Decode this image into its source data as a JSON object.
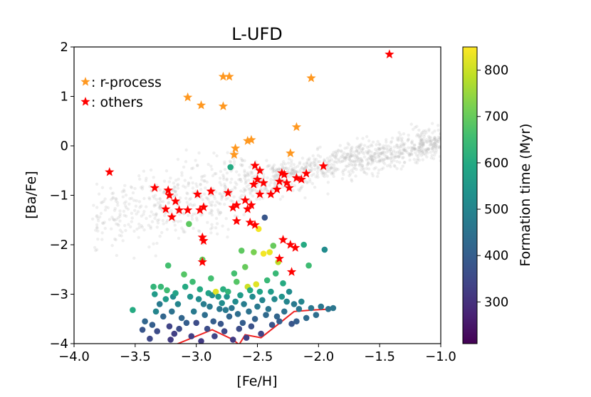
{
  "chart_data": {
    "type": "scatter",
    "title": "L-UFD",
    "xlabel": "[Fe/H]",
    "ylabel": "[Ba/Fe]",
    "xlim": [
      -4.0,
      -1.0
    ],
    "ylim": [
      -4,
      2
    ],
    "xticks": [
      -4.0,
      -3.5,
      -3.0,
      -2.5,
      -2.0,
      -1.5,
      -1.0
    ],
    "xtick_labels": [
      "−4.0",
      "−3.5",
      "−3.0",
      "−2.5",
      "−2.0",
      "−1.5",
      "−1.0"
    ],
    "yticks": [
      -4,
      -3,
      -2,
      -1,
      0,
      1,
      2
    ],
    "ytick_labels": [
      "−4",
      "−3",
      "−2",
      "−1",
      "0",
      "1",
      "2"
    ],
    "legend": {
      "placement": "top-left",
      "entries": [
        {
          "label": ": r-process",
          "marker": "star",
          "color": "#ff9820"
        },
        {
          "label": ": others",
          "marker": "star",
          "color": "#ff0000"
        }
      ]
    },
    "colorbar": {
      "label": "Formation time (Myr)",
      "range": [
        210,
        850
      ],
      "ticks": [
        300,
        400,
        500,
        600,
        700,
        800
      ],
      "tick_labels": [
        "300",
        "400",
        "500",
        "600",
        "700",
        "800"
      ],
      "colormap": "viridis"
    },
    "series": [
      {
        "name": "r-process",
        "marker": "star",
        "color": "#ff9820",
        "points": [
          [
            -2.78,
            1.4
          ],
          [
            -2.73,
            1.4
          ],
          [
            -2.06,
            1.37
          ],
          [
            -3.07,
            0.98
          ],
          [
            -2.96,
            0.82
          ],
          [
            -2.78,
            0.8
          ],
          [
            -2.18,
            0.38
          ],
          [
            -2.55,
            0.12
          ],
          [
            -2.58,
            0.1
          ],
          [
            -2.23,
            -0.15
          ],
          [
            -2.68,
            -0.05
          ],
          [
            -2.69,
            -0.18
          ]
        ]
      },
      {
        "name": "others",
        "marker": "star",
        "color": "#ff0000",
        "points": [
          [
            -1.42,
            1.85
          ],
          [
            -3.71,
            -0.53
          ],
          [
            -3.34,
            -0.85
          ],
          [
            -3.23,
            -0.9
          ],
          [
            -3.22,
            -1.0
          ],
          [
            -3.17,
            -1.12
          ],
          [
            -3.25,
            -1.28
          ],
          [
            -3.14,
            -1.3
          ],
          [
            -3.2,
            -1.44
          ],
          [
            -3.07,
            -1.3
          ],
          [
            -2.99,
            -0.98
          ],
          [
            -2.94,
            -1.24
          ],
          [
            -2.97,
            -1.3
          ],
          [
            -2.88,
            -0.92
          ],
          [
            -2.74,
            -0.95
          ],
          [
            -2.7,
            -1.25
          ],
          [
            -2.67,
            -1.2
          ],
          [
            -2.6,
            -1.1
          ],
          [
            -2.58,
            -1.28
          ],
          [
            -2.55,
            -1.2
          ],
          [
            -2.53,
            -0.78
          ],
          [
            -2.5,
            -0.68
          ],
          [
            -2.52,
            -0.4
          ],
          [
            -2.48,
            -0.5
          ],
          [
            -2.48,
            -0.98
          ],
          [
            -2.45,
            -0.75
          ],
          [
            -2.39,
            -0.98
          ],
          [
            -2.34,
            -0.88
          ],
          [
            -2.32,
            -0.72
          ],
          [
            -2.3,
            -0.55
          ],
          [
            -2.28,
            -0.58
          ],
          [
            -2.26,
            -0.75
          ],
          [
            -2.24,
            -0.85
          ],
          [
            -2.18,
            -0.65
          ],
          [
            -2.1,
            -0.56
          ],
          [
            -2.14,
            -0.68
          ],
          [
            -1.96,
            -0.41
          ],
          [
            -2.52,
            -1.6
          ],
          [
            -2.67,
            -1.52
          ],
          [
            -2.56,
            -1.55
          ],
          [
            -2.29,
            -1.9
          ],
          [
            -2.23,
            -2.0
          ],
          [
            -2.19,
            -2.06
          ],
          [
            -2.32,
            -2.28
          ],
          [
            -2.94,
            -1.92
          ],
          [
            -2.95,
            -2.35
          ],
          [
            -2.22,
            -2.55
          ],
          [
            -2.95,
            -1.85
          ]
        ]
      },
      {
        "name": "simulation",
        "marker": "dot",
        "color": "#b8b8b8",
        "note": "faint grey background cloud of simulated stars following a rising [Ba/Fe] trend"
      },
      {
        "name": "L-UFD stars",
        "marker": "circle",
        "colored_by": "Formation time (Myr)",
        "points": [
          [
            -3.52,
            -3.32,
            600
          ],
          [
            -3.44,
            -3.72,
            380
          ],
          [
            -3.42,
            -3.55,
            420
          ],
          [
            -3.38,
            -3.9,
            350
          ],
          [
            -3.36,
            -3.62,
            400
          ],
          [
            -3.35,
            -2.85,
            630
          ],
          [
            -3.34,
            -3.0,
            560
          ],
          [
            -3.33,
            -3.35,
            500
          ],
          [
            -3.32,
            -3.75,
            360
          ],
          [
            -3.3,
            -3.2,
            470
          ],
          [
            -3.29,
            -2.85,
            640
          ],
          [
            -3.27,
            -3.45,
            420
          ],
          [
            -3.25,
            -3.1,
            560
          ],
          [
            -3.24,
            -2.92,
            650
          ],
          [
            -3.23,
            -2.42,
            660
          ],
          [
            -3.22,
            -3.65,
            340
          ],
          [
            -3.21,
            -3.92,
            320
          ],
          [
            -3.2,
            -3.35,
            450
          ],
          [
            -3.19,
            -3.05,
            520
          ],
          [
            -3.18,
            -3.8,
            330
          ],
          [
            -3.17,
            -2.98,
            580
          ],
          [
            -3.15,
            -3.2,
            500
          ],
          [
            -3.14,
            -3.7,
            360
          ],
          [
            -3.12,
            -3.48,
            420
          ],
          [
            -3.1,
            -2.6,
            680
          ],
          [
            -3.09,
            -2.85,
            600
          ],
          [
            -3.08,
            -3.58,
            400
          ],
          [
            -3.06,
            -1.58,
            690
          ],
          [
            -3.05,
            -3.05,
            540
          ],
          [
            -3.04,
            -3.85,
            330
          ],
          [
            -3.03,
            -2.75,
            650
          ],
          [
            -3.02,
            -3.35,
            470
          ],
          [
            -3.0,
            -3.58,
            360
          ],
          [
            -2.98,
            -3.1,
            520
          ],
          [
            -2.97,
            -2.9,
            600
          ],
          [
            -2.96,
            -3.95,
            320
          ],
          [
            -2.95,
            -2.3,
            700
          ],
          [
            -2.94,
            -3.2,
            480
          ],
          [
            -2.93,
            -3.42,
            440
          ],
          [
            -2.91,
            -3.7,
            360
          ],
          [
            -2.9,
            -2.98,
            580
          ],
          [
            -2.89,
            -3.25,
            470
          ],
          [
            -2.88,
            -2.68,
            660
          ],
          [
            -2.87,
            -3.02,
            520
          ],
          [
            -2.86,
            -3.55,
            400
          ],
          [
            -2.85,
            -3.85,
            340
          ],
          [
            -2.84,
            -2.95,
            820
          ],
          [
            -2.82,
            -3.05,
            560
          ],
          [
            -2.81,
            -3.3,
            460
          ],
          [
            -2.8,
            -3.6,
            380
          ],
          [
            -2.79,
            -3.18,
            520
          ],
          [
            -2.78,
            -2.9,
            610
          ],
          [
            -2.77,
            -3.75,
            350
          ],
          [
            -2.76,
            -3.32,
            470
          ],
          [
            -2.75,
            -3.05,
            540
          ],
          [
            -2.74,
            -2.95,
            630
          ],
          [
            -2.73,
            -3.45,
            420
          ],
          [
            -2.72,
            -0.43,
            600
          ],
          [
            -2.71,
            -3.28,
            460
          ],
          [
            -2.7,
            -3.92,
            320
          ],
          [
            -2.69,
            -2.58,
            660
          ],
          [
            -2.68,
            -3.15,
            520
          ],
          [
            -2.67,
            -2.75,
            680
          ],
          [
            -2.66,
            -3.4,
            440
          ],
          [
            -2.65,
            -3.7,
            360
          ],
          [
            -2.64,
            -3.02,
            560
          ],
          [
            -2.63,
            -2.12,
            690
          ],
          [
            -2.62,
            -3.58,
            400
          ],
          [
            -2.61,
            -3.2,
            480
          ],
          [
            -2.6,
            -2.45,
            700
          ],
          [
            -2.59,
            -3.88,
            330
          ],
          [
            -2.58,
            -2.85,
            800
          ],
          [
            -2.57,
            -3.35,
            450
          ],
          [
            -2.56,
            -2.92,
            600
          ],
          [
            -2.55,
            -3.65,
            370
          ],
          [
            -2.54,
            -3.05,
            520
          ],
          [
            -2.53,
            -2.15,
            720
          ],
          [
            -2.52,
            -3.5,
            410
          ],
          [
            -2.51,
            -2.8,
            820
          ],
          [
            -2.5,
            -3.25,
            470
          ],
          [
            -2.49,
            -1.68,
            840
          ],
          [
            -2.48,
            -2.95,
            580
          ],
          [
            -2.47,
            -3.8,
            340
          ],
          [
            -2.46,
            -3.12,
            500
          ],
          [
            -2.45,
            -2.18,
            840
          ],
          [
            -2.44,
            -1.45,
            380
          ],
          [
            -2.43,
            -3.42,
            430
          ],
          [
            -2.42,
            -2.72,
            640
          ],
          [
            -2.41,
            -3.3,
            460
          ],
          [
            -2.4,
            -2.15,
            830
          ],
          [
            -2.39,
            -2.95,
            560
          ],
          [
            -2.38,
            -3.62,
            380
          ],
          [
            -2.37,
            -2.02,
            700
          ],
          [
            -2.36,
            -3.1,
            510
          ],
          [
            -2.35,
            -2.58,
            640
          ],
          [
            -2.34,
            -3.45,
            420
          ],
          [
            -2.33,
            -2.35,
            780
          ],
          [
            -2.32,
            -3.55,
            400
          ],
          [
            -2.3,
            -3.05,
            540
          ],
          [
            -2.29,
            -2.78,
            600
          ],
          [
            -2.28,
            -3.35,
            450
          ],
          [
            -2.26,
            -3.15,
            500
          ],
          [
            -2.24,
            -2.95,
            520
          ],
          [
            -2.22,
            -3.6,
            380
          ],
          [
            -2.2,
            -3.2,
            470
          ],
          [
            -2.18,
            -3.55,
            400
          ],
          [
            -2.16,
            -3.3,
            460
          ],
          [
            -2.14,
            -3.15,
            500
          ],
          [
            -2.12,
            -2.0,
            600
          ],
          [
            -2.1,
            -3.48,
            430
          ],
          [
            -2.08,
            -2.42,
            650
          ],
          [
            -2.06,
            -3.28,
            460
          ],
          [
            -2.02,
            -3.42,
            440
          ],
          [
            -1.98,
            -3.25,
            460
          ],
          [
            -1.95,
            -2.1,
            520
          ],
          [
            -1.92,
            -3.3,
            450
          ],
          [
            -1.88,
            -3.28,
            460
          ]
        ]
      },
      {
        "name": "lower-limit line",
        "marker": "line",
        "color": "#ee2222",
        "points": [
          [
            -3.2,
            -4.05
          ],
          [
            -2.87,
            -3.72
          ],
          [
            -2.7,
            -3.92
          ],
          [
            -2.65,
            -4.02
          ],
          [
            -2.6,
            -3.82
          ],
          [
            -2.47,
            -3.88
          ],
          [
            -2.3,
            -3.55
          ],
          [
            -2.2,
            -3.35
          ],
          [
            -2.05,
            -3.32
          ],
          [
            -1.88,
            -3.3
          ]
        ]
      }
    ]
  }
}
